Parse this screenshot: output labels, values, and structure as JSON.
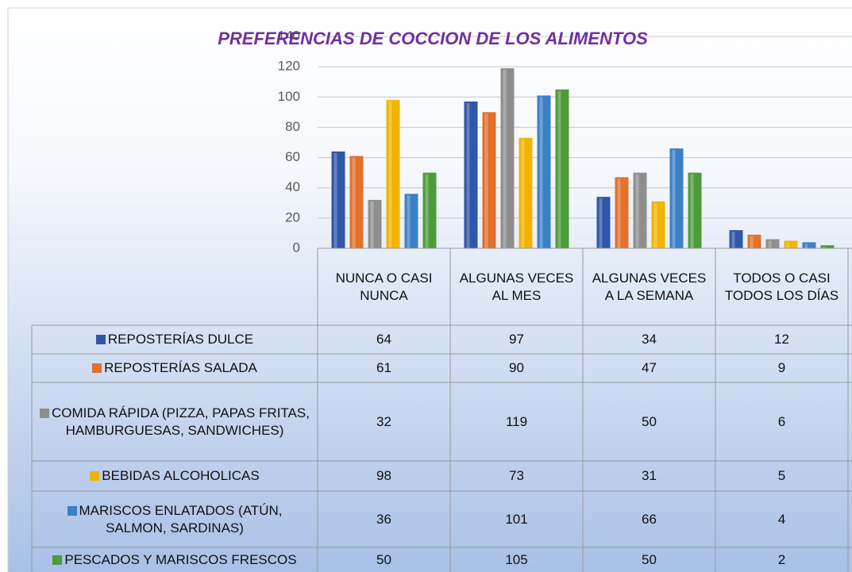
{
  "chart_data": {
    "type": "bar",
    "title": "PREFERENCIAS DE COCCION DE LOS ALIMENTOS",
    "categories": [
      "NUNCA O CASI NUNCA",
      "ALGUNAS VECES AL MES",
      "ALGUNAS VECES A LA SEMANA",
      "TODOS O CASI TODOS LOS DÍAS"
    ],
    "series": [
      {
        "name": "REPOSTERÍAS DULCE",
        "color": "#2f56a8",
        "values": [
          64,
          97,
          34,
          12
        ]
      },
      {
        "name": "REPOSTERÍAS SALADA",
        "color": "#e2712b",
        "values": [
          61,
          90,
          47,
          9
        ]
      },
      {
        "name": "COMIDA RÁPIDA (PIZZA, PAPAS FRITAS, HAMBURGUESAS, SANDWICHES)",
        "color": "#8e8e8e",
        "values": [
          32,
          119,
          50,
          6
        ]
      },
      {
        "name": "BEBIDAS ALCOHOLICAS",
        "color": "#f0b400",
        "values": [
          98,
          73,
          31,
          5
        ]
      },
      {
        "name": "MARISCOS ENLATADOS (ATÚN, SALMON, SARDINAS)",
        "color": "#3c80c6",
        "values": [
          36,
          101,
          66,
          4
        ]
      },
      {
        "name": "PESCADOS Y MARISCOS FRESCOS",
        "color": "#4e9b3b",
        "values": [
          50,
          105,
          50,
          2
        ]
      }
    ],
    "ylim": [
      0,
      140
    ],
    "yticks": [
      0,
      20,
      40,
      60,
      80,
      100,
      120,
      140
    ],
    "grid": true,
    "data_table": true
  }
}
